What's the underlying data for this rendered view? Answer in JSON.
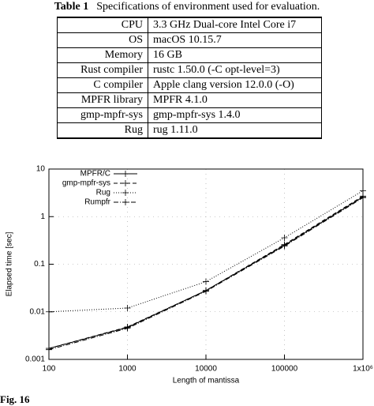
{
  "table": {
    "label": "Table 1",
    "caption": "Specifications of environment used for evaluation.",
    "rows": [
      [
        "CPU",
        "3.3 GHz Dual-core Intel Core i7"
      ],
      [
        "OS",
        "macOS 10.15.7"
      ],
      [
        "Memory",
        "16 GB"
      ],
      [
        "Rust compiler",
        "rustc 1.50.0 (-C opt-level=3)"
      ],
      [
        "C compiler",
        "Apple clang version 12.0.0 (-O)"
      ],
      [
        "MPFR library",
        "MPFR 4.1.0"
      ],
      [
        "gmp-mpfr-sys",
        "gmp-mpfr-sys 1.4.0"
      ],
      [
        "Rug",
        "rug 1.11.0"
      ]
    ]
  },
  "chart_data": {
    "type": "line",
    "x_label": "Length of mantissa",
    "y_label": "Elapsed time [sec]",
    "xscale": "log",
    "yscale": "log",
    "grid": true,
    "legend": "top-left",
    "x": [
      100,
      1000,
      10000,
      100000,
      1000000
    ],
    "xlim": [
      100,
      1000000
    ],
    "xticks": [
      100,
      1000,
      10000,
      100000,
      {
        "value": 1000000,
        "label": "1x10⁶"
      }
    ],
    "ylim": [
      0.001,
      10
    ],
    "yticks": [
      0.001,
      0.01,
      0.1,
      1,
      10
    ],
    "series": [
      {
        "name": "MPFR/C",
        "color": "#000000",
        "style": "solid",
        "values": [
          0.0017,
          0.0047,
          0.028,
          0.25,
          2.6
        ]
      },
      {
        "name": "gmp-mpfr-sys",
        "color": "#000000",
        "style": "dashed",
        "values": [
          0.0017,
          0.0048,
          0.028,
          0.26,
          2.7
        ]
      },
      {
        "name": "Rug",
        "color": "#000000",
        "style": "dotted",
        "values": [
          0.01,
          0.012,
          0.043,
          0.36,
          3.5
        ]
      },
      {
        "name": "Rumpfr",
        "color": "#000000",
        "style": "dashdot",
        "values": [
          0.0016,
          0.0045,
          0.027,
          0.24,
          2.5
        ]
      }
    ]
  },
  "figure_caption": "Fig. 16"
}
